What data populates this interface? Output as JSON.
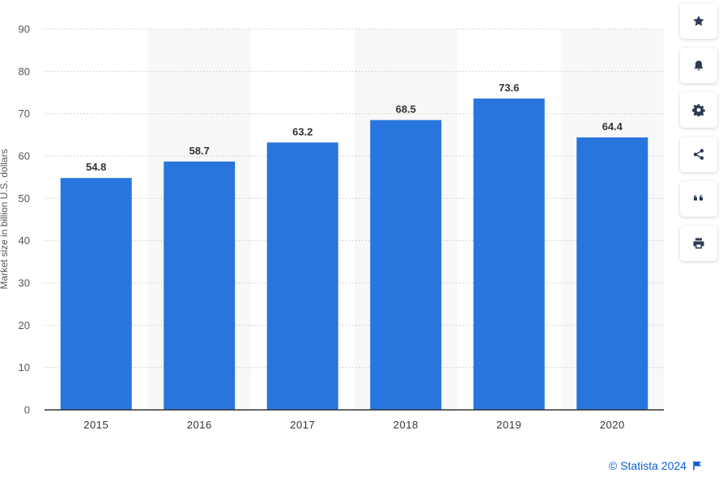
{
  "chart_data": {
    "type": "bar",
    "categories": [
      "2015",
      "2016",
      "2017",
      "2018",
      "2019",
      "2020"
    ],
    "values": [
      54.8,
      58.7,
      63.2,
      68.5,
      73.6,
      64.4
    ],
    "data_labels": [
      "54.8",
      "58.7",
      "63.2",
      "68.5",
      "73.6",
      "64.4"
    ],
    "ylabel": "Market size in billion U.S. dollars",
    "xlabel": "",
    "ylim": [
      0,
      90
    ],
    "yticks": [
      0,
      10,
      20,
      30,
      40,
      50,
      60,
      70,
      80,
      90
    ],
    "grid": true,
    "bar_color": "#2775dd",
    "alt_band_color": "#f8f8f8"
  },
  "toolbar": {
    "items": [
      {
        "name": "star-icon"
      },
      {
        "name": "bell-icon"
      },
      {
        "name": "gear-icon"
      },
      {
        "name": "share-icon"
      },
      {
        "name": "quote-icon"
      },
      {
        "name": "print-icon"
      }
    ]
  },
  "credit": {
    "text": "© Statista 2024",
    "color": "#0b5fd1"
  }
}
